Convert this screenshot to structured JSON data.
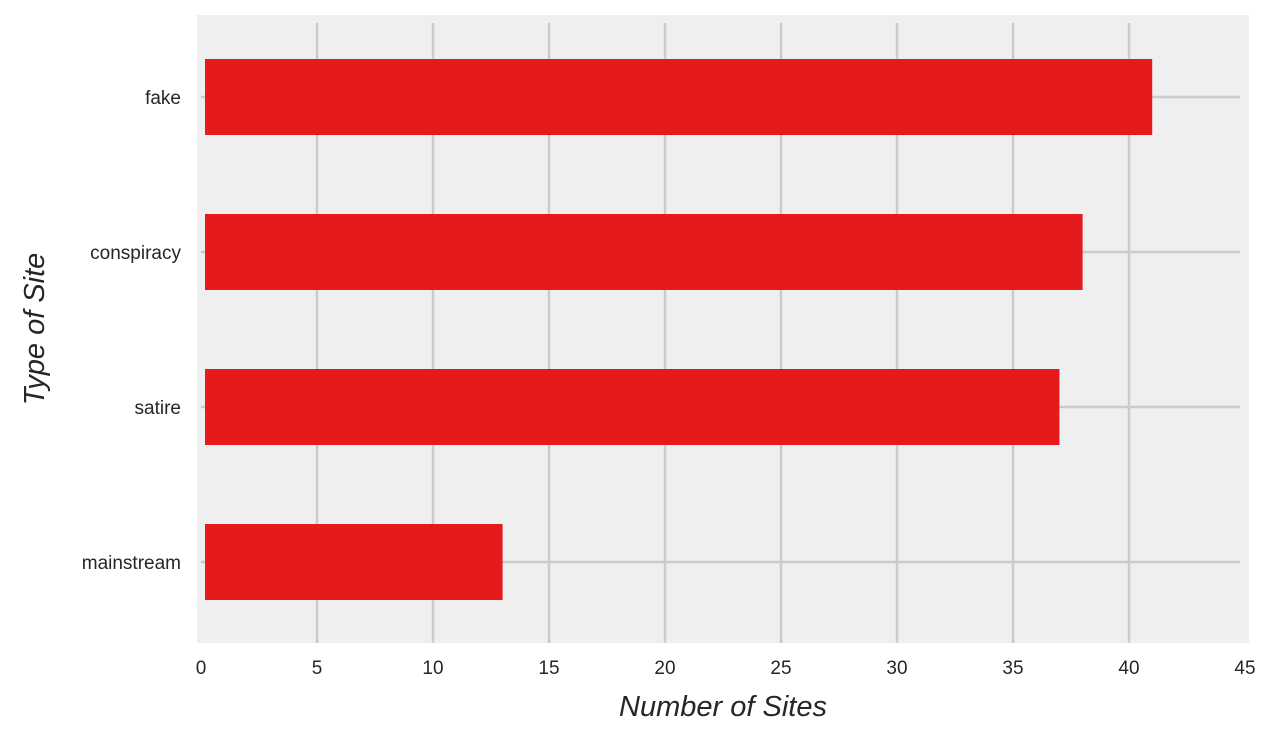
{
  "chart_data": {
    "type": "bar",
    "orientation": "horizontal",
    "categories": [
      "fake",
      "conspiracy",
      "satire",
      "mainstream"
    ],
    "values": [
      41,
      38,
      37,
      13
    ],
    "xlabel": "Number of Sites",
    "ylabel": "Type of Site",
    "xlim": [
      0,
      45
    ],
    "xticks": [
      0,
      5,
      10,
      15,
      20,
      25,
      30,
      35,
      40,
      45
    ],
    "grid": true,
    "legend": "none"
  },
  "colors": {
    "bar": "#e41a1c",
    "plot_background": "#efefef",
    "grid": "#cbcbcb",
    "text": "#262626"
  }
}
